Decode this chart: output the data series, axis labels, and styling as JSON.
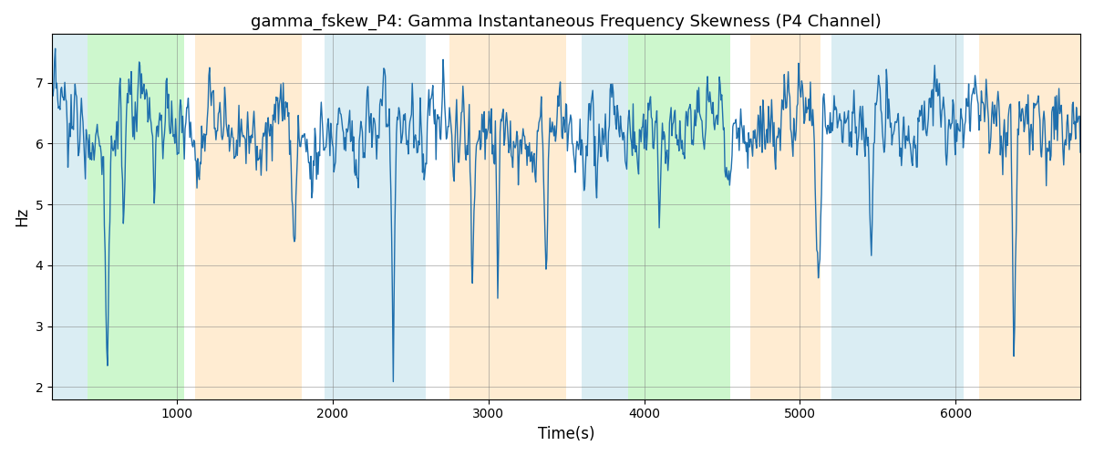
{
  "title": "gamma_fskew_P4: Gamma Instantaneous Frequency Skewness (P4 Channel)",
  "xlabel": "Time(s)",
  "ylabel": "Hz",
  "xlim": [
    200,
    6800
  ],
  "ylim": [
    1.8,
    7.8
  ],
  "yticks": [
    2,
    3,
    4,
    5,
    6,
    7
  ],
  "line_color": "#1f6fad",
  "line_width": 1.0,
  "background_regions": [
    {
      "xmin": 200,
      "xmax": 430,
      "color": "#add8e6",
      "alpha": 0.45
    },
    {
      "xmin": 430,
      "xmax": 1050,
      "color": "#90ee90",
      "alpha": 0.45
    },
    {
      "xmin": 1050,
      "xmax": 1120,
      "color": "#ffffff",
      "alpha": 0.0
    },
    {
      "xmin": 1120,
      "xmax": 1800,
      "color": "#ffdead",
      "alpha": 0.55
    },
    {
      "xmin": 1800,
      "xmax": 1950,
      "color": "#ffffff",
      "alpha": 0.0
    },
    {
      "xmin": 1950,
      "xmax": 2600,
      "color": "#add8e6",
      "alpha": 0.45
    },
    {
      "xmin": 2600,
      "xmax": 2750,
      "color": "#ffffff",
      "alpha": 0.0
    },
    {
      "xmin": 2750,
      "xmax": 3500,
      "color": "#ffdead",
      "alpha": 0.55
    },
    {
      "xmin": 3500,
      "xmax": 3600,
      "color": "#ffffff",
      "alpha": 0.0
    },
    {
      "xmin": 3600,
      "xmax": 3900,
      "color": "#add8e6",
      "alpha": 0.45
    },
    {
      "xmin": 3900,
      "xmax": 4550,
      "color": "#90ee90",
      "alpha": 0.45
    },
    {
      "xmin": 4550,
      "xmax": 4680,
      "color": "#ffffff",
      "alpha": 0.0
    },
    {
      "xmin": 4680,
      "xmax": 5130,
      "color": "#ffdead",
      "alpha": 0.55
    },
    {
      "xmin": 5130,
      "xmax": 5200,
      "color": "#ffffff",
      "alpha": 0.0
    },
    {
      "xmin": 5200,
      "xmax": 6050,
      "color": "#add8e6",
      "alpha": 0.45
    },
    {
      "xmin": 6050,
      "xmax": 6150,
      "color": "#ffffff",
      "alpha": 0.0
    },
    {
      "xmin": 6150,
      "xmax": 6800,
      "color": "#ffdead",
      "alpha": 0.55
    }
  ],
  "figsize": [
    12.0,
    5.0
  ],
  "dpi": 100
}
